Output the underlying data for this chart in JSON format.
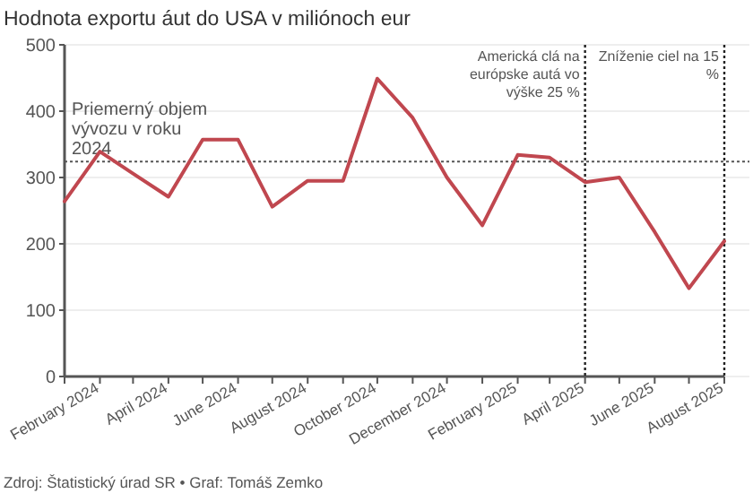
{
  "chart_data": {
    "type": "line",
    "title": "Hodnota exportu áut do USA v miliónoch eur",
    "x": [
      "2024-01",
      "2024-02",
      "2024-03",
      "2024-04",
      "2024-05",
      "2024-06",
      "2024-07",
      "2024-08",
      "2024-09",
      "2024-10",
      "2024-11",
      "2024-12",
      "2025-01",
      "2025-02",
      "2025-03",
      "2025-04",
      "2025-05",
      "2025-06",
      "2025-07",
      "2025-08"
    ],
    "series": [
      {
        "color": "#c0474f",
        "values": [
          264,
          339,
          306,
          271,
          357,
          357,
          256,
          295,
          295,
          449,
          390,
          300,
          228,
          334,
          330,
          293,
          300,
          218,
          133,
          204
        ]
      }
    ],
    "xlim": [
      "2024-01",
      "2025-08"
    ],
    "xticks": [
      {
        "value": "2024-01",
        "label": null
      },
      {
        "value": "2024-02",
        "label": "February 2024"
      },
      {
        "value": "2024-03",
        "label": null
      },
      {
        "value": "2024-04",
        "label": "April 2024"
      },
      {
        "value": "2024-05",
        "label": null
      },
      {
        "value": "2024-06",
        "label": "June 2024"
      },
      {
        "value": "2024-07",
        "label": null
      },
      {
        "value": "2024-08",
        "label": "August 2024"
      },
      {
        "value": "2024-09",
        "label": null
      },
      {
        "value": "2024-10",
        "label": "October 2024"
      },
      {
        "value": "2024-11",
        "label": null
      },
      {
        "value": "2024-12",
        "label": "December 2024"
      },
      {
        "value": "2025-01",
        "label": null
      },
      {
        "value": "2025-02",
        "label": "February 2025"
      },
      {
        "value": "2025-03",
        "label": null
      },
      {
        "value": "2025-04",
        "label": "April 2025"
      },
      {
        "value": "2025-05",
        "label": null
      },
      {
        "value": "2025-06",
        "label": "June 2025"
      },
      {
        "value": "2025-07",
        "label": null
      },
      {
        "value": "2025-08",
        "label": "August 2025"
      }
    ],
    "ylim": [
      0,
      500
    ],
    "yticks": [
      0,
      100,
      200,
      300,
      400,
      500
    ],
    "grid": "y",
    "ref_lines": [
      {
        "axis": "y",
        "value": 324,
        "label": "Priemerný objem vývozu v roku 2024",
        "line_style": "dotted",
        "color": "#555555"
      },
      {
        "axis": "x",
        "value": "2025-04",
        "label": "Americká clá na európske autá vo výške 25 %",
        "line_style": "dotted",
        "color": "#222222"
      },
      {
        "axis": "x",
        "value": "2025-08",
        "label": "Zníženie ciel na 15 %",
        "line_style": "dotted",
        "color": "#222222"
      }
    ],
    "annotations": [
      "Zdroj: Štatistický úrad SR • Graf: Tomáš Zemko"
    ]
  }
}
